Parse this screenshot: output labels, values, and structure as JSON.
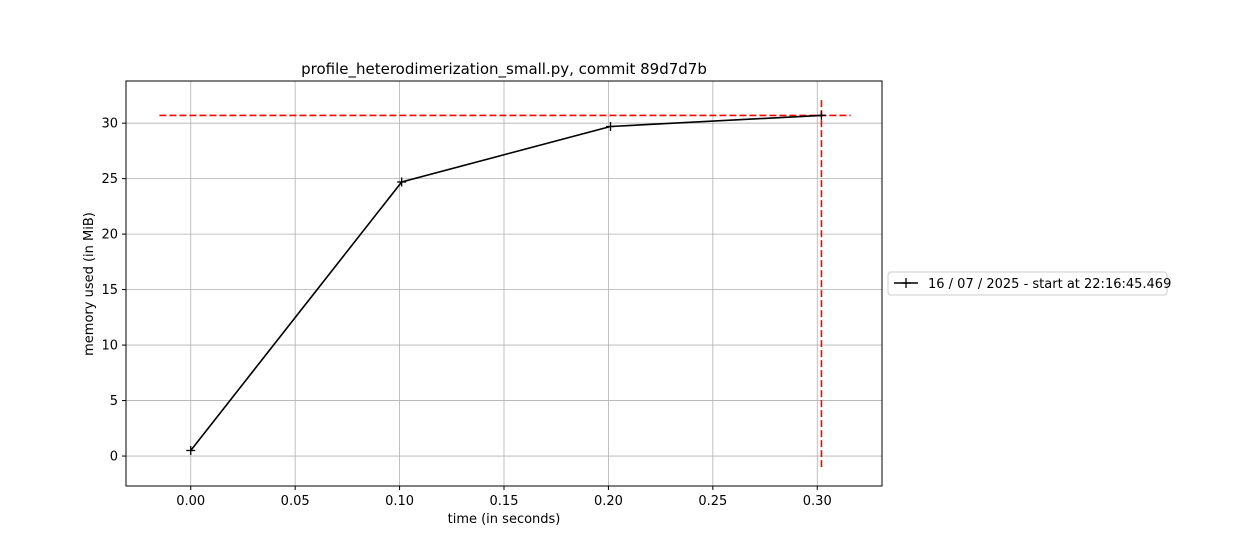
{
  "chart_data": {
    "type": "line",
    "title": "profile_heterodimerization_small.py, commit 89d7d7b",
    "xlabel": "time (in seconds)",
    "ylabel": "memory used (in MiB)",
    "xlim": [
      -0.031,
      0.331
    ],
    "ylim": [
      -2.7,
      33.8
    ],
    "x_ticks": [
      0.0,
      0.05,
      0.1,
      0.15,
      0.2,
      0.25,
      0.3
    ],
    "x_tick_labels": [
      "0.00",
      "0.05",
      "0.10",
      "0.15",
      "0.20",
      "0.25",
      "0.30"
    ],
    "y_ticks": [
      0,
      5,
      10,
      15,
      20,
      25,
      30
    ],
    "y_tick_labels": [
      "0",
      "5",
      "10",
      "15",
      "20",
      "25",
      "30"
    ],
    "grid": true,
    "legend_position": "outside-right",
    "series": [
      {
        "name": "16 / 07 / 2025 - start at 22:16:45.469",
        "color": "#000000",
        "marker": "plus",
        "x": [
          0.0,
          0.101,
          0.201,
          0.302
        ],
        "y": [
          0.5,
          24.7,
          29.7,
          30.7
        ]
      }
    ],
    "reference_lines": [
      {
        "orientation": "horizontal",
        "y": 30.7,
        "x_range": [
          -0.015,
          0.316
        ],
        "color": "#ff0000",
        "style": "dashed"
      },
      {
        "orientation": "vertical",
        "x": 0.302,
        "y_range": [
          -1.0,
          32.3
        ],
        "color": "#ff0000",
        "style": "dashed"
      }
    ]
  }
}
